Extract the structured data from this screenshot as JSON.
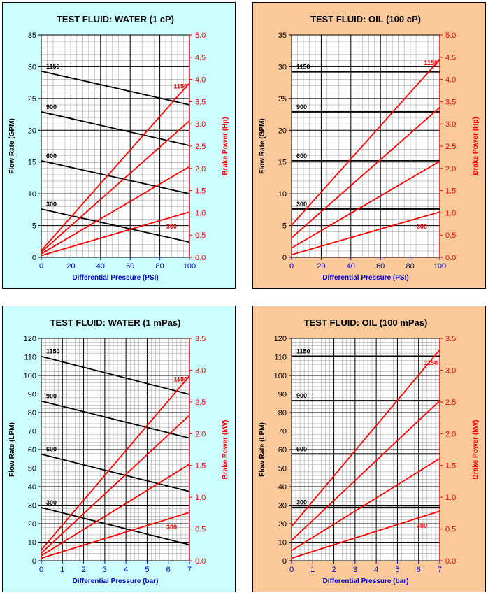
{
  "chart_data": [
    {
      "type": "line",
      "title": "TEST FLUID:  WATER (1 cP)",
      "xlabel": "Differential Pressure (PSI)",
      "ylabel": "Flow Rate (GPM)",
      "y2label": "Brake Power (Hp)",
      "xlim": [
        0,
        100
      ],
      "ylim": [
        0,
        35
      ],
      "y2lim": [
        0,
        5
      ],
      "xticks": [
        "0",
        "20",
        "40",
        "60",
        "80",
        "100"
      ],
      "yticks": [
        "0",
        "5",
        "10",
        "15",
        "20",
        "25",
        "30",
        "35"
      ],
      "y2ticks": [
        "0.0",
        "0.5",
        "1.0",
        "1.5",
        "2.0",
        "2.5",
        "3.0",
        "3.5",
        "4.0",
        "4.5",
        "5.0"
      ],
      "background": "#ccffff",
      "flow_color": "#000000",
      "power_color": "#ff0000",
      "flow_series": [
        {
          "name": "1150",
          "x": [
            0,
            100
          ],
          "y": [
            29.3,
            24.0
          ]
        },
        {
          "name": "900",
          "x": [
            0,
            100
          ],
          "y": [
            22.9,
            17.6
          ]
        },
        {
          "name": "600",
          "x": [
            0,
            100
          ],
          "y": [
            15.2,
            10.0
          ]
        },
        {
          "name": "300",
          "x": [
            0,
            100
          ],
          "y": [
            7.6,
            2.4
          ]
        }
      ],
      "power_series": [
        {
          "name": "1150",
          "x": [
            0,
            100
          ],
          "y": [
            0.15,
            3.92
          ],
          "show_label": true
        },
        {
          "name": "900",
          "x": [
            0,
            100
          ],
          "y": [
            0.12,
            3.07
          ],
          "show_label": false
        },
        {
          "name": "600",
          "x": [
            0,
            100
          ],
          "y": [
            0.08,
            2.04
          ],
          "show_label": false
        },
        {
          "name": "300",
          "x": [
            0,
            100
          ],
          "y": [
            0.04,
            1.02
          ],
          "show_label": true
        }
      ]
    },
    {
      "type": "line",
      "title": "TEST FLUID:  OIL (100 cP)",
      "xlabel": "Differential Pressure (PSI)",
      "ylabel": "Flow Rate (GPM)",
      "y2label": "Brake Power (Hp)",
      "xlim": [
        0,
        100
      ],
      "ylim": [
        0,
        35
      ],
      "y2lim": [
        0,
        5
      ],
      "xticks": [
        "0",
        "20",
        "40",
        "60",
        "80",
        "100"
      ],
      "yticks": [
        "0",
        "5",
        "10",
        "15",
        "20",
        "25",
        "30",
        "35"
      ],
      "y2ticks": [
        "0.0",
        "0.5",
        "1.0",
        "1.5",
        "2.0",
        "2.5",
        "3.0",
        "3.5",
        "4.0",
        "4.5",
        "5.0"
      ],
      "background": "#fcc99a",
      "flow_color": "#000000",
      "power_color": "#ff0000",
      "flow_series": [
        {
          "name": "1150",
          "x": [
            0,
            100
          ],
          "y": [
            29.2,
            29.2
          ]
        },
        {
          "name": "900",
          "x": [
            0,
            100
          ],
          "y": [
            22.9,
            22.9
          ]
        },
        {
          "name": "600",
          "x": [
            0,
            100
          ],
          "y": [
            15.2,
            15.2
          ]
        },
        {
          "name": "300",
          "x": [
            0,
            100
          ],
          "y": [
            7.6,
            7.6
          ]
        }
      ],
      "power_series": [
        {
          "name": "1150",
          "x": [
            0,
            100
          ],
          "y": [
            0.72,
            4.45
          ],
          "show_label": true
        },
        {
          "name": "900",
          "x": [
            0,
            100
          ],
          "y": [
            0.44,
            3.37
          ],
          "show_label": false
        },
        {
          "name": "600",
          "x": [
            0,
            100
          ],
          "y": [
            0.21,
            2.16
          ],
          "show_label": false
        },
        {
          "name": "300",
          "x": [
            0,
            100
          ],
          "y": [
            0.06,
            1.02
          ],
          "show_label": true
        }
      ]
    },
    {
      "type": "line",
      "title": "TEST FLUID:  WATER (1 mPas)",
      "xlabel": "Differential Pressure (bar)",
      "ylabel": "Flow Rate (LPM)",
      "y2label": "Brake Power (kW)",
      "xlim": [
        0,
        7
      ],
      "ylim": [
        0,
        120
      ],
      "y2lim": [
        0,
        3.5
      ],
      "xticks": [
        "0",
        "1",
        "2",
        "3",
        "4",
        "5",
        "6",
        "7"
      ],
      "yticks": [
        "0",
        "10",
        "20",
        "30",
        "40",
        "50",
        "60",
        "70",
        "80",
        "90",
        "100",
        "110",
        "120"
      ],
      "y2ticks": [
        "0.0",
        "0.5",
        "1.0",
        "1.5",
        "2.0",
        "2.5",
        "3.0",
        "3.5"
      ],
      "background": "#ccffff",
      "flow_color": "#000000",
      "power_color": "#ff0000",
      "flow_series": [
        {
          "name": "1150",
          "x": [
            0,
            7
          ],
          "y": [
            110.3,
            89.8
          ]
        },
        {
          "name": "900",
          "x": [
            0,
            7
          ],
          "y": [
            86.2,
            66.2
          ]
        },
        {
          "name": "600",
          "x": [
            0,
            7
          ],
          "y": [
            57.5,
            37.4
          ]
        },
        {
          "name": "300",
          "x": [
            0,
            7
          ],
          "y": [
            28.7,
            8.6
          ]
        }
      ],
      "power_series": [
        {
          "name": "1150",
          "x": [
            0,
            7
          ],
          "y": [
            0.17,
            2.91
          ],
          "show_label": true
        },
        {
          "name": "900",
          "x": [
            0,
            7
          ],
          "y": [
            0.12,
            2.29
          ],
          "show_label": false
        },
        {
          "name": "600",
          "x": [
            0,
            7
          ],
          "y": [
            0.08,
            1.52
          ],
          "show_label": false
        },
        {
          "name": "300",
          "x": [
            0,
            7
          ],
          "y": [
            0.04,
            0.76
          ],
          "show_label": true
        }
      ]
    },
    {
      "type": "line",
      "title": "TEST FLUID:  OIL (100 mPas)",
      "xlabel": "Differential Pressure (bar)",
      "ylabel": "Flow Rate (LPM)",
      "y2label": "Brake Power (kW)",
      "xlim": [
        0,
        7
      ],
      "ylim": [
        0,
        120
      ],
      "y2lim": [
        0,
        3.5
      ],
      "xticks": [
        "0",
        "1",
        "2",
        "3",
        "4",
        "5",
        "6",
        "7"
      ],
      "yticks": [
        "0",
        "10",
        "20",
        "30",
        "40",
        "50",
        "60",
        "70",
        "80",
        "90",
        "100",
        "110",
        "120"
      ],
      "y2ticks": [
        "0.0",
        "0.5",
        "1.0",
        "1.5",
        "2.0",
        "2.5",
        "3.0",
        "3.5"
      ],
      "background": "#fcc99a",
      "flow_color": "#000000",
      "power_color": "#ff0000",
      "flow_series": [
        {
          "name": "1150",
          "x": [
            0,
            7
          ],
          "y": [
            110.4,
            110.4
          ]
        },
        {
          "name": "900",
          "x": [
            0,
            7
          ],
          "y": [
            86.4,
            86.4
          ]
        },
        {
          "name": "600",
          "x": [
            0,
            7
          ],
          "y": [
            57.6,
            57.6
          ]
        },
        {
          "name": "300",
          "x": [
            0,
            7
          ],
          "y": [
            28.8,
            28.8
          ]
        }
      ],
      "power_series": [
        {
          "name": "1150",
          "x": [
            0,
            7
          ],
          "y": [
            0.54,
            3.32
          ],
          "show_label": true
        },
        {
          "name": "900",
          "x": [
            0,
            7
          ],
          "y": [
            0.32,
            2.52
          ],
          "show_label": false
        },
        {
          "name": "600",
          "x": [
            0,
            7
          ],
          "y": [
            0.16,
            1.61
          ],
          "show_label": false
        },
        {
          "name": "300",
          "x": [
            0,
            7
          ],
          "y": [
            0.04,
            0.78
          ],
          "show_label": true
        }
      ]
    }
  ]
}
